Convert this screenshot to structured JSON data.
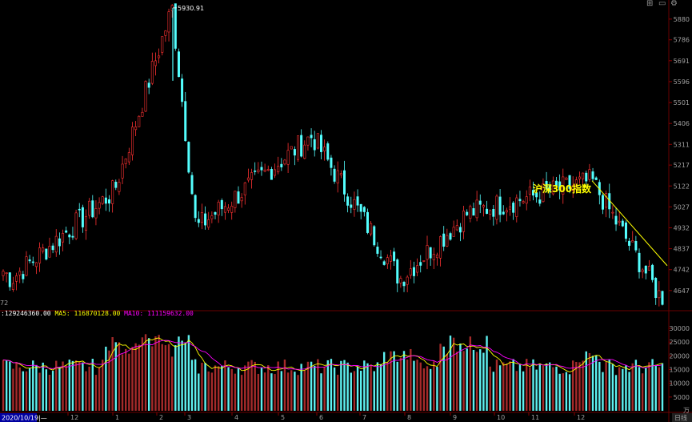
{
  "chart_data": [
    {
      "type": "candlestick",
      "title": "",
      "annotation": "沪深300指数",
      "high_label": "5930.91",
      "low_label_partial": "72",
      "y_ticks": [
        4647,
        4742,
        4837,
        4932,
        5027,
        5122,
        5217,
        5311,
        5406,
        5501,
        5596,
        5691,
        5786,
        5880
      ],
      "ylim": [
        4570,
        5945
      ],
      "x_ticks": [
        "12",
        "1",
        "2",
        "3",
        "4",
        "5",
        "6",
        "7",
        "8",
        "9",
        "10",
        "11",
        "12"
      ],
      "colors": {
        "up": "#ff3232",
        "down": "#54ffff",
        "trendline": "#ffff00"
      },
      "trend_line": {
        "from": 5146,
        "to": 4760
      },
      "key_points": [
        {
          "label": "start",
          "value": 4750
        },
        {
          "label": "low_dec",
          "value": 4700
        },
        {
          "label": "jan_rise",
          "value": 5100
        },
        {
          "label": "feb_peak",
          "value": 5930.91
        },
        {
          "label": "mar_low",
          "value": 4930
        },
        {
          "label": "apr_high",
          "value": 5350
        },
        {
          "label": "jul_low",
          "value": 4700
        },
        {
          "label": "sep_high",
          "value": 5000
        },
        {
          "label": "dec_high",
          "value": 5146
        },
        {
          "label": "end",
          "value": 4620
        }
      ]
    },
    {
      "type": "bar",
      "title": "",
      "legend": {
        "vol": "129246360.00",
        "ma5": "116870128.00",
        "ma10": "111159632.00"
      },
      "legend_labels": {
        "ma5": "MA5:",
        "ma10": "MA10:"
      },
      "y_ticks": [
        5000,
        10000,
        15000,
        20000,
        25000,
        30000
      ],
      "ylim": [
        0,
        33500
      ],
      "unit": "万",
      "colors": {
        "up": "#a52a2a",
        "down": "#5ef0f0",
        "ma5": "#ffff00",
        "ma10": "#ff00ff"
      }
    }
  ],
  "footer": {
    "start_date": "2020/10/19",
    "period": "日线"
  },
  "window_icons": [
    "⊞",
    "▭",
    "⚙"
  ]
}
